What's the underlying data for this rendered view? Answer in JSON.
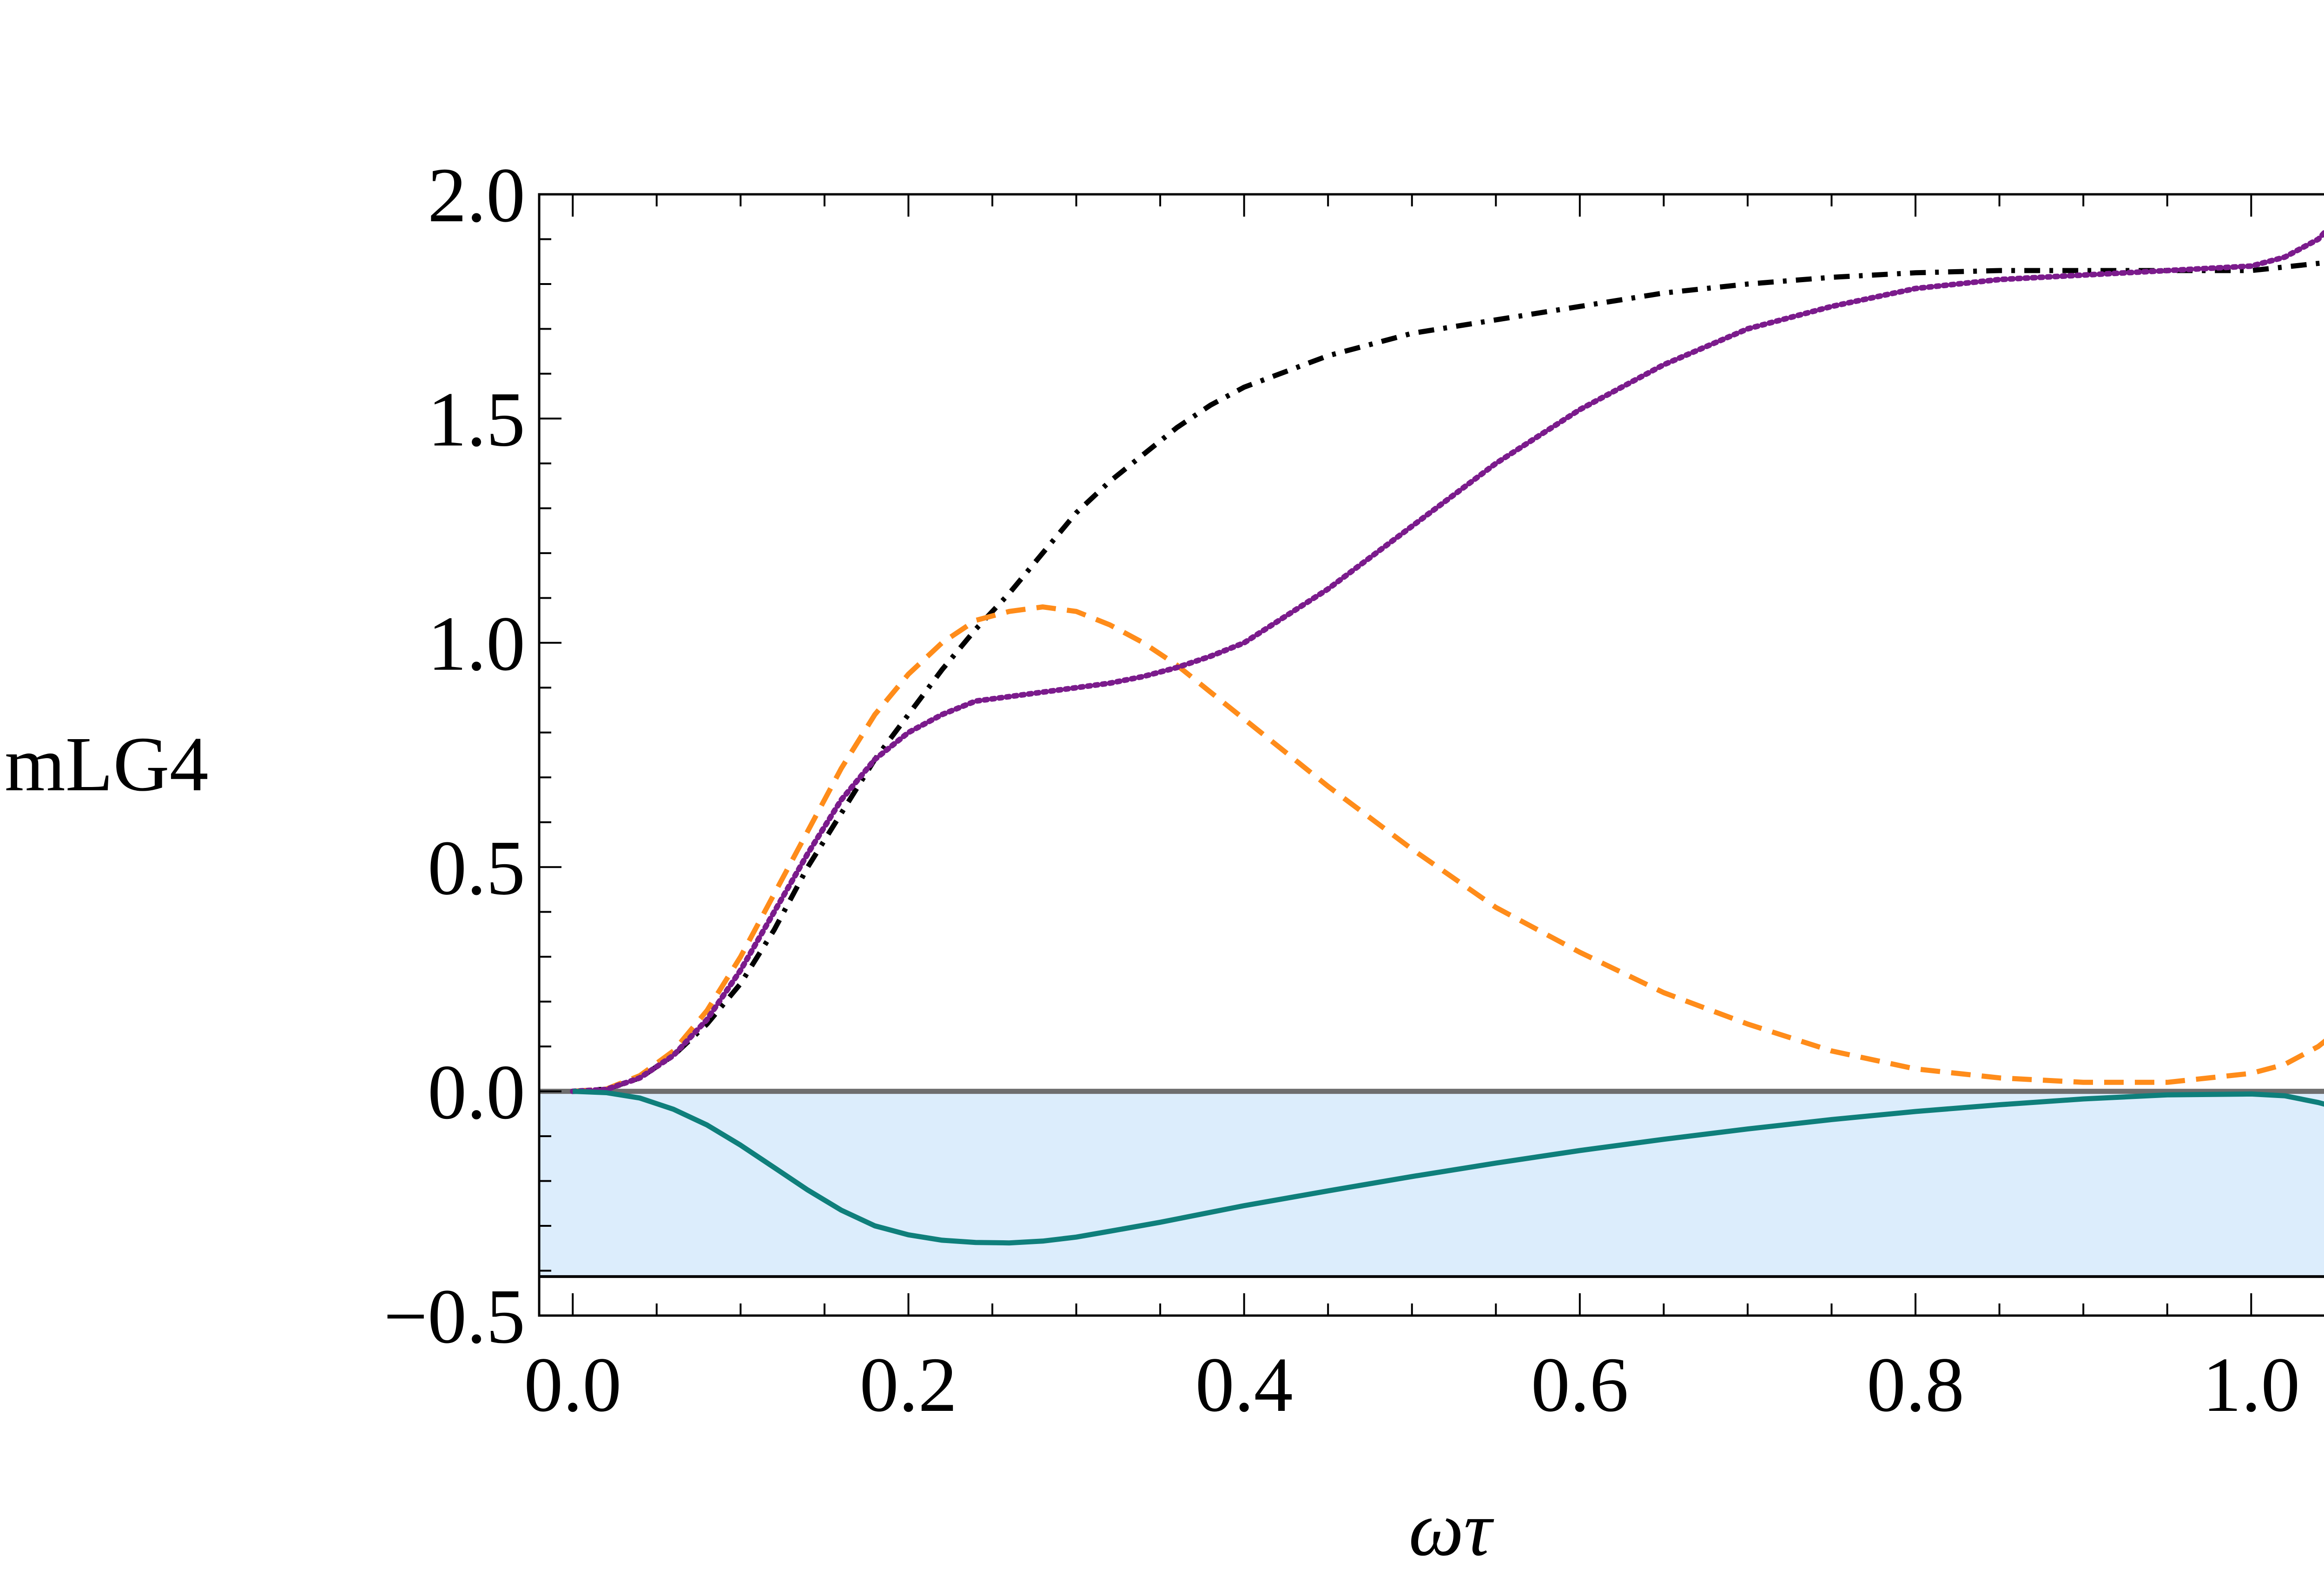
{
  "chart_data": {
    "type": "line",
    "title": "",
    "xlabel": "ωτ",
    "ylabel": "mLG4",
    "xlim": [
      -0.02,
      1.06
    ],
    "ylim": [
      -0.5,
      2.0
    ],
    "grid": false,
    "x_ticks": [
      {
        "value": 0.0,
        "label": "0.0"
      },
      {
        "value": 0.2,
        "label": "0.2"
      },
      {
        "value": 0.4,
        "label": "0.4"
      },
      {
        "value": 0.6,
        "label": "0.6"
      },
      {
        "value": 0.8,
        "label": "0.8"
      },
      {
        "value": 1.0,
        "label": "1.0"
      }
    ],
    "y_ticks": [
      {
        "value": -0.5,
        "label": "−0.5"
      },
      {
        "value": 0.0,
        "label": "0.0"
      },
      {
        "value": 0.5,
        "label": "0.5"
      },
      {
        "value": 1.0,
        "label": "1.0"
      },
      {
        "value": 1.5,
        "label": "1.5"
      },
      {
        "value": 2.0,
        "label": "2.0"
      }
    ],
    "x_minor_step": 0.05,
    "y_minor_step": 0.1,
    "shaded_region": {
      "y_from": -0.413,
      "y_to": 0.0,
      "color": "#dcedfc",
      "edge_color": "#000000"
    },
    "reference_lines": [
      {
        "name": "zero-line",
        "y": 0.0,
        "color": "#6e6e6e"
      },
      {
        "name": "lower-bound-line",
        "y": -0.413,
        "color": "#000000"
      }
    ],
    "series": [
      {
        "name": "dash-dot-black",
        "style": "dashdot",
        "color": "#000000",
        "x": [
          0.0,
          0.02,
          0.04,
          0.06,
          0.08,
          0.1,
          0.12,
          0.14,
          0.16,
          0.18,
          0.2,
          0.22,
          0.24,
          0.26,
          0.28,
          0.3,
          0.32,
          0.34,
          0.36,
          0.38,
          0.4,
          0.45,
          0.5,
          0.55,
          0.6,
          0.65,
          0.7,
          0.75,
          0.8,
          0.85,
          0.9,
          0.95,
          1.0,
          1.05
        ],
        "y": [
          0.0,
          0.005,
          0.03,
          0.08,
          0.15,
          0.24,
          0.36,
          0.5,
          0.62,
          0.74,
          0.84,
          0.94,
          1.03,
          1.11,
          1.2,
          1.29,
          1.36,
          1.42,
          1.48,
          1.53,
          1.57,
          1.64,
          1.69,
          1.72,
          1.75,
          1.78,
          1.8,
          1.815,
          1.825,
          1.83,
          1.83,
          1.83,
          1.83,
          1.85
        ]
      },
      {
        "name": "dashed-orange",
        "style": "dashed",
        "color": "#ff8c1a",
        "x": [
          0.0,
          0.02,
          0.04,
          0.06,
          0.08,
          0.1,
          0.12,
          0.14,
          0.16,
          0.18,
          0.2,
          0.22,
          0.24,
          0.26,
          0.28,
          0.3,
          0.32,
          0.34,
          0.36,
          0.38,
          0.4,
          0.45,
          0.5,
          0.55,
          0.6,
          0.65,
          0.7,
          0.75,
          0.8,
          0.85,
          0.9,
          0.95,
          1.0,
          1.02,
          1.04,
          1.05
        ],
        "y": [
          0.0,
          0.005,
          0.035,
          0.09,
          0.18,
          0.3,
          0.44,
          0.58,
          0.72,
          0.84,
          0.93,
          1.0,
          1.05,
          1.07,
          1.08,
          1.07,
          1.04,
          1.0,
          0.95,
          0.89,
          0.83,
          0.68,
          0.54,
          0.41,
          0.31,
          0.22,
          0.15,
          0.09,
          0.05,
          0.03,
          0.02,
          0.02,
          0.04,
          0.06,
          0.1,
          0.13
        ]
      },
      {
        "name": "dotted-purple",
        "style": "dotted",
        "color": "#7b1b8c",
        "x": [
          0.0,
          0.02,
          0.04,
          0.06,
          0.08,
          0.1,
          0.12,
          0.14,
          0.16,
          0.18,
          0.2,
          0.22,
          0.24,
          0.26,
          0.28,
          0.3,
          0.32,
          0.34,
          0.36,
          0.38,
          0.4,
          0.45,
          0.5,
          0.55,
          0.6,
          0.65,
          0.7,
          0.75,
          0.8,
          0.85,
          0.9,
          0.95,
          1.0,
          1.02,
          1.04,
          1.05
        ],
        "y": [
          0.0,
          0.004,
          0.03,
          0.08,
          0.16,
          0.27,
          0.4,
          0.53,
          0.65,
          0.74,
          0.8,
          0.84,
          0.87,
          0.88,
          0.89,
          0.9,
          0.91,
          0.925,
          0.945,
          0.97,
          1.0,
          1.12,
          1.26,
          1.4,
          1.52,
          1.62,
          1.7,
          1.75,
          1.79,
          1.81,
          1.82,
          1.83,
          1.84,
          1.86,
          1.9,
          1.94
        ]
      },
      {
        "name": "solid-teal",
        "style": "solid",
        "color": "#0f7f7b",
        "x": [
          0.0,
          0.02,
          0.04,
          0.06,
          0.08,
          0.1,
          0.12,
          0.14,
          0.16,
          0.18,
          0.2,
          0.22,
          0.24,
          0.26,
          0.28,
          0.3,
          0.32,
          0.35,
          0.4,
          0.45,
          0.5,
          0.55,
          0.6,
          0.65,
          0.7,
          0.75,
          0.8,
          0.85,
          0.9,
          0.95,
          1.0,
          1.02,
          1.04,
          1.05
        ],
        "y": [
          0.0,
          -0.003,
          -0.015,
          -0.04,
          -0.075,
          -0.12,
          -0.17,
          -0.22,
          -0.265,
          -0.3,
          -0.32,
          -0.332,
          -0.337,
          -0.338,
          -0.334,
          -0.325,
          -0.312,
          -0.292,
          -0.255,
          -0.222,
          -0.19,
          -0.16,
          -0.132,
          -0.107,
          -0.084,
          -0.063,
          -0.045,
          -0.03,
          -0.017,
          -0.008,
          -0.006,
          -0.01,
          -0.025,
          -0.035
        ]
      }
    ]
  }
}
